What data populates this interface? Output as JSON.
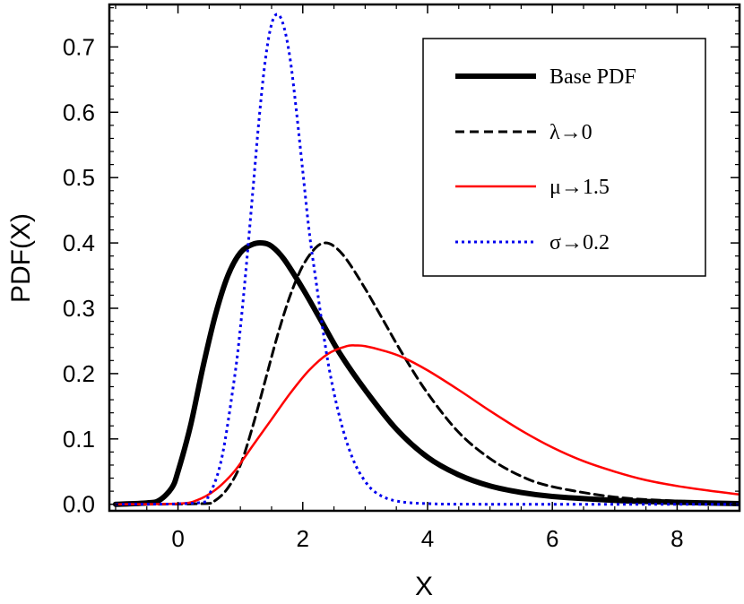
{
  "chart_data": {
    "type": "line",
    "title": "",
    "xlabel": "X",
    "ylabel": "PDF(X)",
    "xlim": [
      -1.1,
      9.0
    ],
    "ylim": [
      -0.01,
      0.765
    ],
    "xticks": [
      0,
      2,
      4,
      6,
      8
    ],
    "xtick_labels": [
      "0",
      "2",
      "4",
      "6",
      "8"
    ],
    "yticks": [
      0.0,
      0.1,
      0.2,
      0.3,
      0.4,
      0.5,
      0.6,
      0.7
    ],
    "ytick_labels": [
      "0.0",
      "0.1",
      "0.2",
      "0.3",
      "0.4",
      "0.5",
      "0.6",
      "0.7"
    ],
    "grid": false,
    "legend_position": "top-right",
    "series": [
      {
        "name": "Base PDF",
        "color": "#000000",
        "style": "solid-thick",
        "x": [
          -1.0,
          -0.5,
          -0.3,
          -0.1,
          0.0,
          0.2,
          0.4,
          0.6,
          0.8,
          1.0,
          1.2,
          1.35,
          1.5,
          1.7,
          2.0,
          2.3,
          2.6,
          3.0,
          3.5,
          4.0,
          4.5,
          5.0,
          5.5,
          6.0,
          7.0,
          8.0,
          9.0
        ],
        "y": [
          0.0,
          0.002,
          0.006,
          0.025,
          0.05,
          0.12,
          0.21,
          0.29,
          0.35,
          0.385,
          0.398,
          0.4,
          0.395,
          0.375,
          0.33,
          0.28,
          0.23,
          0.175,
          0.115,
          0.072,
          0.045,
          0.028,
          0.018,
          0.012,
          0.006,
          0.003,
          0.001
        ]
      },
      {
        "name": "λ→0",
        "color": "#000000",
        "style": "dashed",
        "x": [
          -1.0,
          0.4,
          0.6,
          0.8,
          1.0,
          1.2,
          1.4,
          1.6,
          1.8,
          2.0,
          2.2,
          2.35,
          2.5,
          2.7,
          3.0,
          3.3,
          3.6,
          4.0,
          4.5,
          5.0,
          5.5,
          6.0,
          7.0,
          8.0,
          9.0
        ],
        "y": [
          0.0,
          0.001,
          0.006,
          0.025,
          0.06,
          0.12,
          0.19,
          0.26,
          0.32,
          0.365,
          0.392,
          0.4,
          0.395,
          0.375,
          0.33,
          0.28,
          0.23,
          0.17,
          0.11,
          0.07,
          0.043,
          0.027,
          0.011,
          0.005,
          0.002
        ]
      },
      {
        "name": "μ→1.5",
        "color": "#ff0000",
        "style": "solid",
        "x": [
          -1.0,
          0.0,
          0.3,
          0.6,
          0.9,
          1.2,
          1.5,
          1.8,
          2.1,
          2.4,
          2.7,
          2.85,
          3.0,
          3.3,
          3.6,
          4.0,
          4.5,
          5.0,
          5.5,
          6.0,
          6.5,
          7.0,
          7.5,
          8.0,
          8.5,
          9.0
        ],
        "y": [
          0.0,
          0.001,
          0.006,
          0.022,
          0.05,
          0.09,
          0.13,
          0.17,
          0.205,
          0.23,
          0.242,
          0.243,
          0.242,
          0.235,
          0.225,
          0.205,
          0.175,
          0.143,
          0.113,
          0.087,
          0.066,
          0.05,
          0.037,
          0.028,
          0.021,
          0.015
        ]
      },
      {
        "name": "σ→0.2",
        "color": "#0000ee",
        "style": "dotted",
        "x": [
          -1.0,
          0.3,
          0.5,
          0.7,
          0.9,
          1.0,
          1.1,
          1.2,
          1.3,
          1.4,
          1.5,
          1.6,
          1.7,
          1.8,
          1.9,
          2.0,
          2.1,
          2.2,
          2.4,
          2.6,
          2.8,
          3.0,
          3.2,
          3.5,
          4.0,
          5.0,
          9.0
        ],
        "y": [
          0.0,
          0.002,
          0.015,
          0.07,
          0.19,
          0.27,
          0.37,
          0.48,
          0.59,
          0.68,
          0.735,
          0.75,
          0.73,
          0.68,
          0.6,
          0.51,
          0.42,
          0.35,
          0.22,
          0.13,
          0.07,
          0.035,
          0.016,
          0.005,
          0.001,
          0.0,
          0.0
        ]
      }
    ]
  }
}
